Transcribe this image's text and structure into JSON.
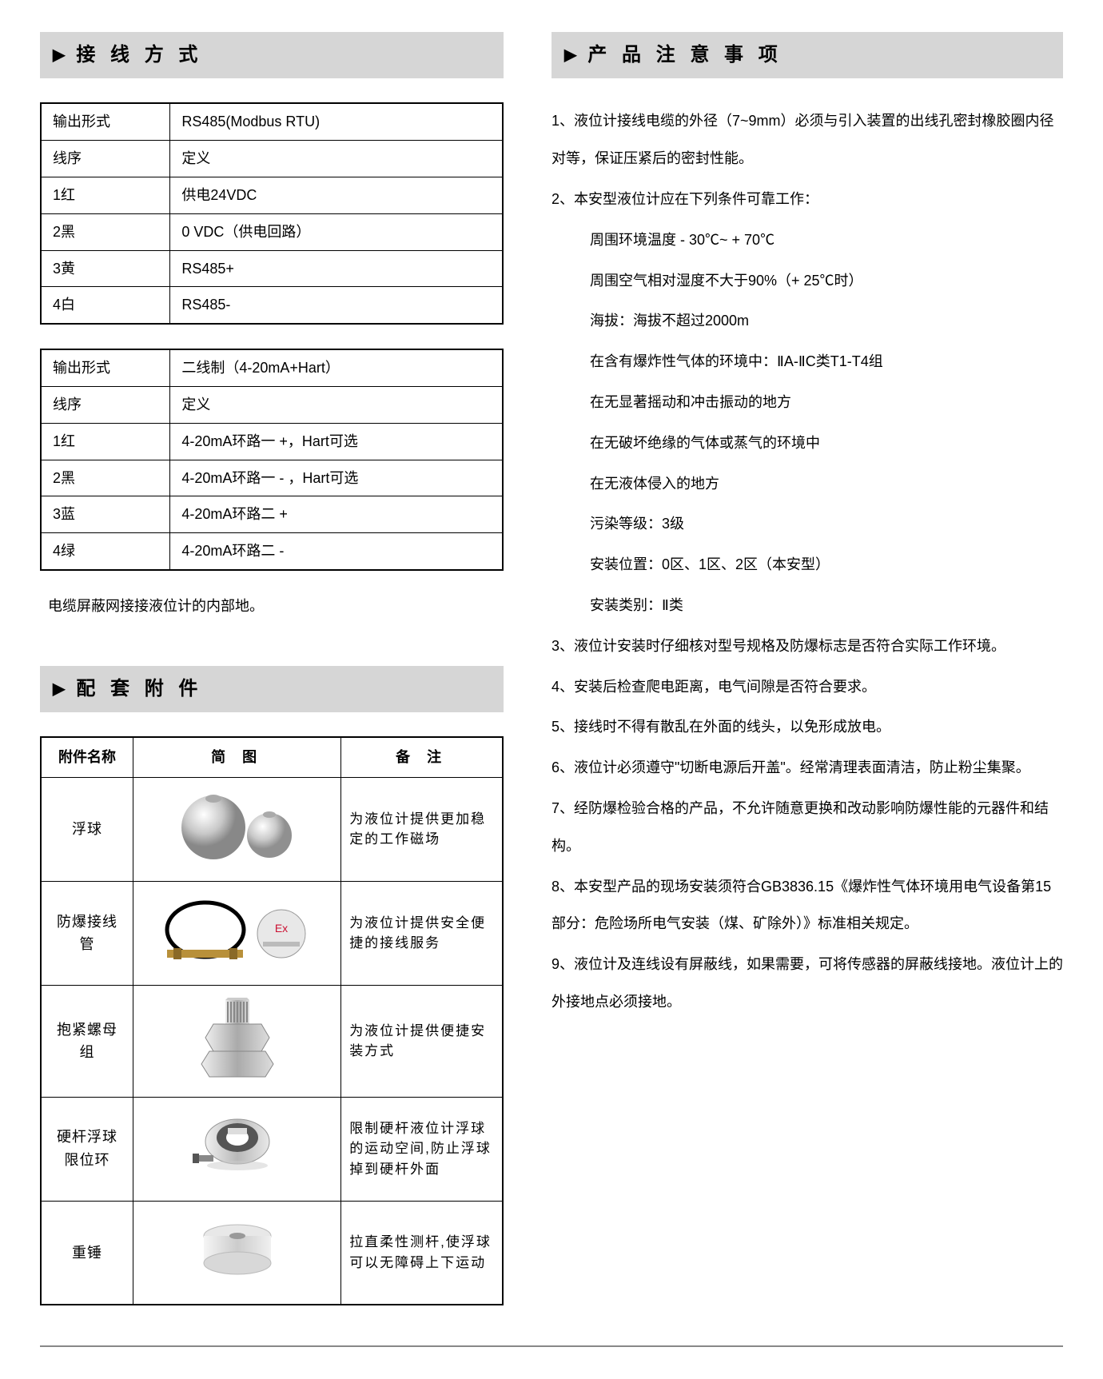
{
  "headers": {
    "wiring": "接 线 方 式",
    "accessories": "配 套 附 件",
    "notes": "产 品 注 意 事 项"
  },
  "table1": {
    "rows": [
      [
        "输出形式",
        "RS485(Modbus RTU)"
      ],
      [
        "线序",
        "定义"
      ],
      [
        "1红",
        "供电24VDC"
      ],
      [
        "2黑",
        "0 VDC（供电回路）"
      ],
      [
        "3黄",
        "RS485+"
      ],
      [
        "4白",
        "RS485-"
      ]
    ]
  },
  "table2": {
    "rows": [
      [
        "输出形式",
        "二线制（4-20mA+Hart）"
      ],
      [
        "线序",
        "定义"
      ],
      [
        "1红",
        "4-20mA环路一 +，Hart可选"
      ],
      [
        "2黑",
        "4-20mA环路一 - ，Hart可选"
      ],
      [
        "3蓝",
        "4-20mA环路二 +"
      ],
      [
        "4绿",
        "4-20mA环路二 -"
      ]
    ]
  },
  "cable_note": "电缆屏蔽网接接液位计的内部地。",
  "accessory_table": {
    "headers": [
      "附件名称",
      "简 图",
      "备 注"
    ],
    "rows": [
      {
        "name": "浮球",
        "note": "为液位计提供更加稳定的工作磁场",
        "img": "float-ball"
      },
      {
        "name": "防爆接线管",
        "note": "为液位计提供安全便捷的接线服务",
        "img": "explosion-tube"
      },
      {
        "name": "抱紧螺母组",
        "note": "为液位计提供便捷安装方式",
        "img": "nut-set"
      },
      {
        "name": "硬杆浮球限位环",
        "note": "限制硬杆液位计浮球的运动空间,防止浮球掉到硬杆外面",
        "img": "limit-ring"
      },
      {
        "name": "重锤",
        "note": "拉直柔性测杆,使浮球可以无障碍上下运动",
        "img": "weight"
      }
    ]
  },
  "notes": {
    "items": [
      "1、液位计接线电缆的外径（7~9mm）必须与引入装置的出线孔密封橡胶圈内径对等，保证压紧后的密封性能。",
      "2、本安型液位计应在下列条件可靠工作：",
      "周围环境温度 - 30℃~ + 70℃",
      "周围空气相对湿度不大于90%（+ 25℃时）",
      "海拔：海拔不超过2000m",
      "在含有爆炸性气体的环境中：ⅡA-ⅡC类T1-T4组",
      "在无显著摇动和冲击振动的地方",
      "在无破坏绝缘的气体或蒸气的环境中",
      "在无液体侵入的地方",
      "污染等级：3级",
      "安装位置：0区、1区、2区（本安型）",
      "安装类别：Ⅱ类",
      "3、液位计安装时仔细核对型号规格及防爆标志是否符合实际工作环境。",
      "4、安装后检查爬电距离，电气间隙是否符合要求。",
      "5、接线时不得有散乱在外面的线头，以免形成放电。",
      "6、液位计必须遵守\"切断电源后开盖\"。经常清理表面清洁，防止粉尘集聚。",
      "7、经防爆检验合格的产品，不允许随意更换和改动影响防爆性能的元器件和结构。",
      "8、本安型产品的现场安装须符合GB3836.15《爆炸性气体环境用电气设备第15部分：危险场所电气安装（煤、矿除外）》标准相关规定。",
      "9、液位计及连线设有屏蔽线，如果需要，可将传感器的屏蔽线接地。液位计上的外接地点必须接地。"
    ],
    "indent_flags": [
      false,
      false,
      true,
      true,
      true,
      true,
      true,
      true,
      true,
      true,
      true,
      true,
      false,
      false,
      false,
      false,
      false,
      false,
      false
    ]
  },
  "colors": {
    "header_bg": "#d6d6d6",
    "border": "#000000",
    "text": "#000000"
  }
}
